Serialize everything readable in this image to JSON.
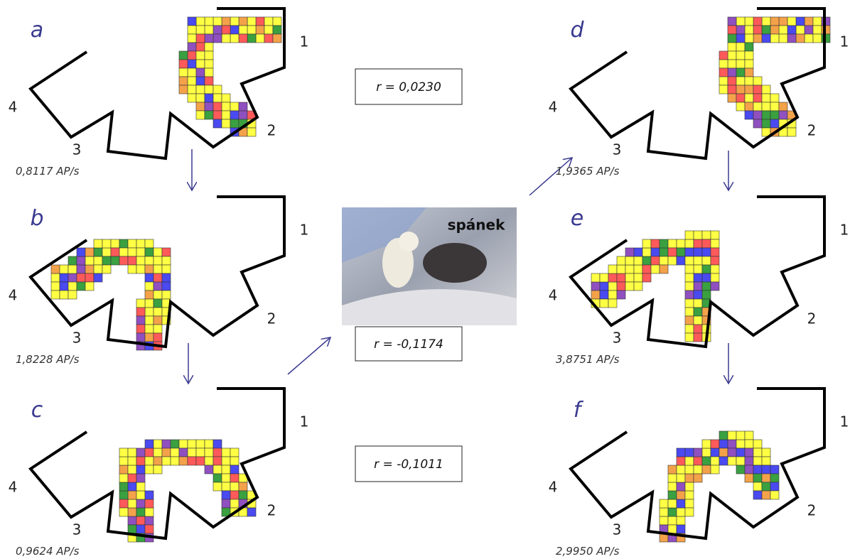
{
  "panels": [
    {
      "letter": "a",
      "arms": [
        "1",
        "2",
        "3",
        "4"
      ],
      "rate": "0,8117 AP/s"
    },
    {
      "letter": "b",
      "arms": [
        "1",
        "2",
        "3",
        "4"
      ],
      "rate": "1,8228 AP/s"
    },
    {
      "letter": "c",
      "arms": [
        "1",
        "2",
        "3",
        "4"
      ],
      "rate": "0,9624 AP/s"
    },
    {
      "letter": "d",
      "arms": [
        "1",
        "2",
        "3",
        "4"
      ],
      "rate": "1,9365 AP/s"
    },
    {
      "letter": "e",
      "arms": [
        "1",
        "2",
        "3",
        "4"
      ],
      "rate": "3,8751 AP/s"
    },
    {
      "letter": "f",
      "arms": [
        "1",
        "2",
        "3",
        "4"
      ],
      "rate": "2,9950 AP/s"
    }
  ],
  "correlations": [
    "r = 0,0230",
    "r = -0,1174",
    "r = -0,1011"
  ],
  "photo_label": "spánek"
}
